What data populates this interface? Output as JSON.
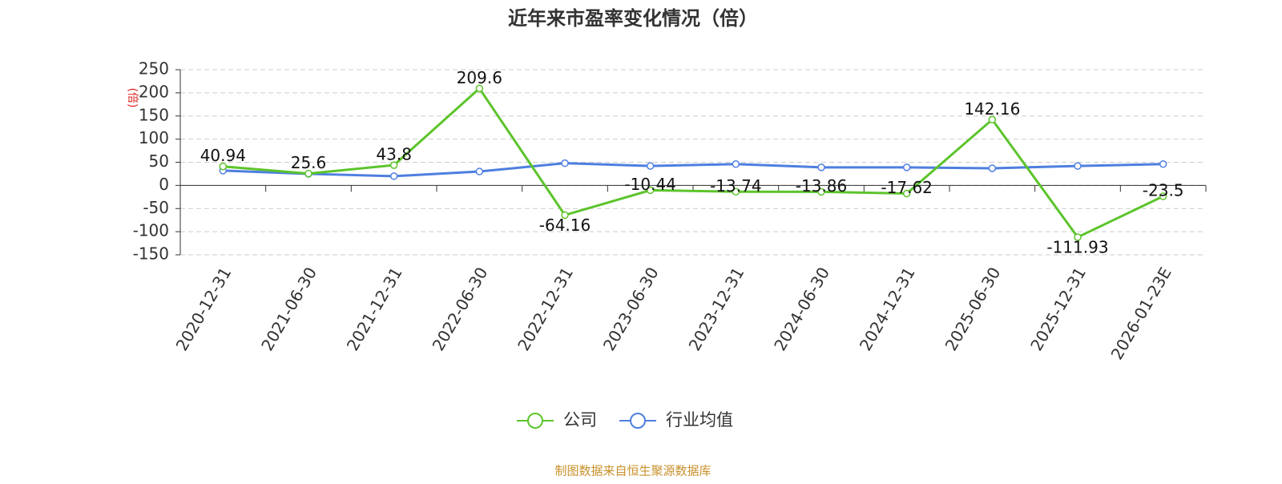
{
  "chart_data": {
    "type": "line",
    "title": "近年来市盈率变化情况（倍）",
    "y_label": "(倍)",
    "categories": [
      "2020-12-31",
      "2021-06-30",
      "2021-12-31",
      "2022-06-30",
      "2022-12-31",
      "2023-06-30",
      "2023-12-31",
      "2024-06-30",
      "2024-12-31",
      "2025-06-30",
      "2025-12-31",
      "2026-01-23E"
    ],
    "series": [
      {
        "name": "公司",
        "color": "#5cc42b",
        "values": [
          40.94,
          25.6,
          43.8,
          209.6,
          -64.16,
          -10.44,
          -13.74,
          -13.86,
          -17.62,
          142.16,
          -111.93,
          -23.5
        ]
      },
      {
        "name": "行业均值",
        "color": "#4e7fe0",
        "values": [
          32,
          25,
          20,
          30,
          48,
          42,
          46,
          39,
          39,
          37,
          42,
          46
        ]
      }
    ],
    "ylim": [
      -150,
      250
    ],
    "yticks": [
      -150,
      -100,
      -50,
      0,
      50,
      100,
      150,
      200,
      250
    ],
    "grid": true,
    "source": "制图数据来自恒生聚源数据库"
  }
}
